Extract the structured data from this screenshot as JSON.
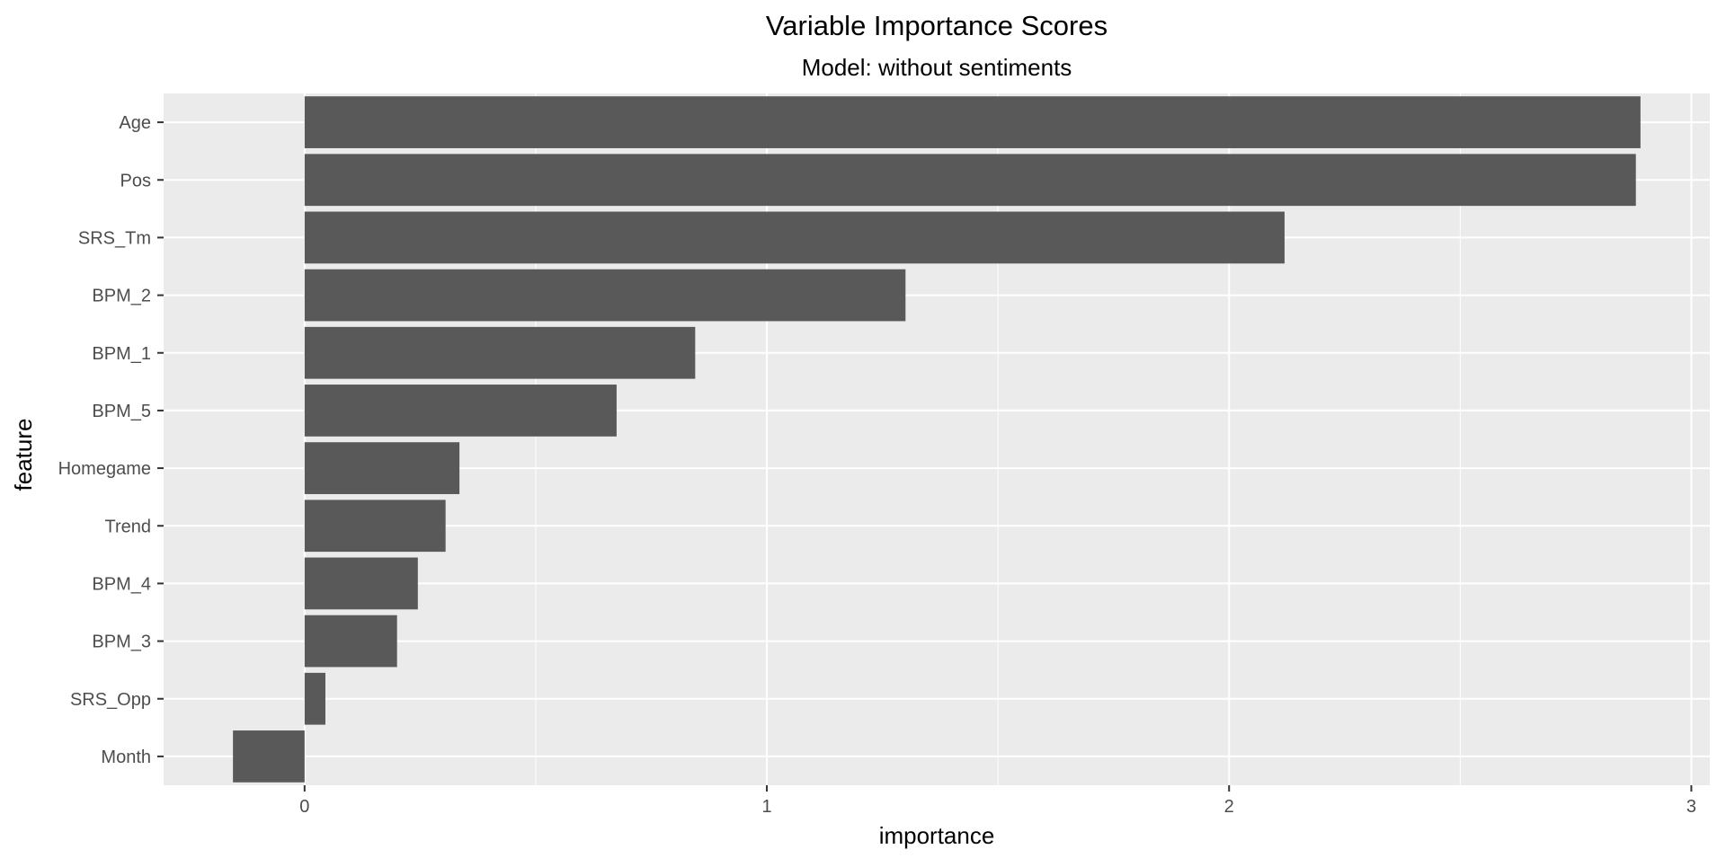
{
  "chart_data": {
    "type": "bar",
    "orientation": "horizontal",
    "title": "Variable Importance Scores",
    "subtitle": "Model: without sentiments",
    "xlabel": "importance",
    "ylabel": "feature",
    "categories": [
      "Age",
      "Pos",
      "SRS_Tm",
      "BPM_2",
      "BPM_1",
      "BPM_5",
      "Homegame",
      "Trend",
      "BPM_4",
      "BPM_3",
      "SRS_Opp",
      "Month"
    ],
    "values": [
      2.89,
      2.88,
      2.12,
      1.3,
      0.845,
      0.675,
      0.335,
      0.305,
      0.245,
      0.2,
      0.045,
      -0.155
    ],
    "xlim": [
      -0.305,
      3.04
    ],
    "x_ticks": [
      0,
      1,
      2,
      3
    ],
    "x_tick_labels": [
      "0",
      "1",
      "2",
      "3"
    ],
    "x_minor_gridlines": [
      0.5,
      1.5,
      2.5
    ],
    "grid": true,
    "colors": {
      "bar": "#595959",
      "panel": "#ebebeb",
      "grid": "#ffffff",
      "text": "#000000",
      "tick_label": "#4d4d4d",
      "tick_mark": "#333333"
    }
  }
}
